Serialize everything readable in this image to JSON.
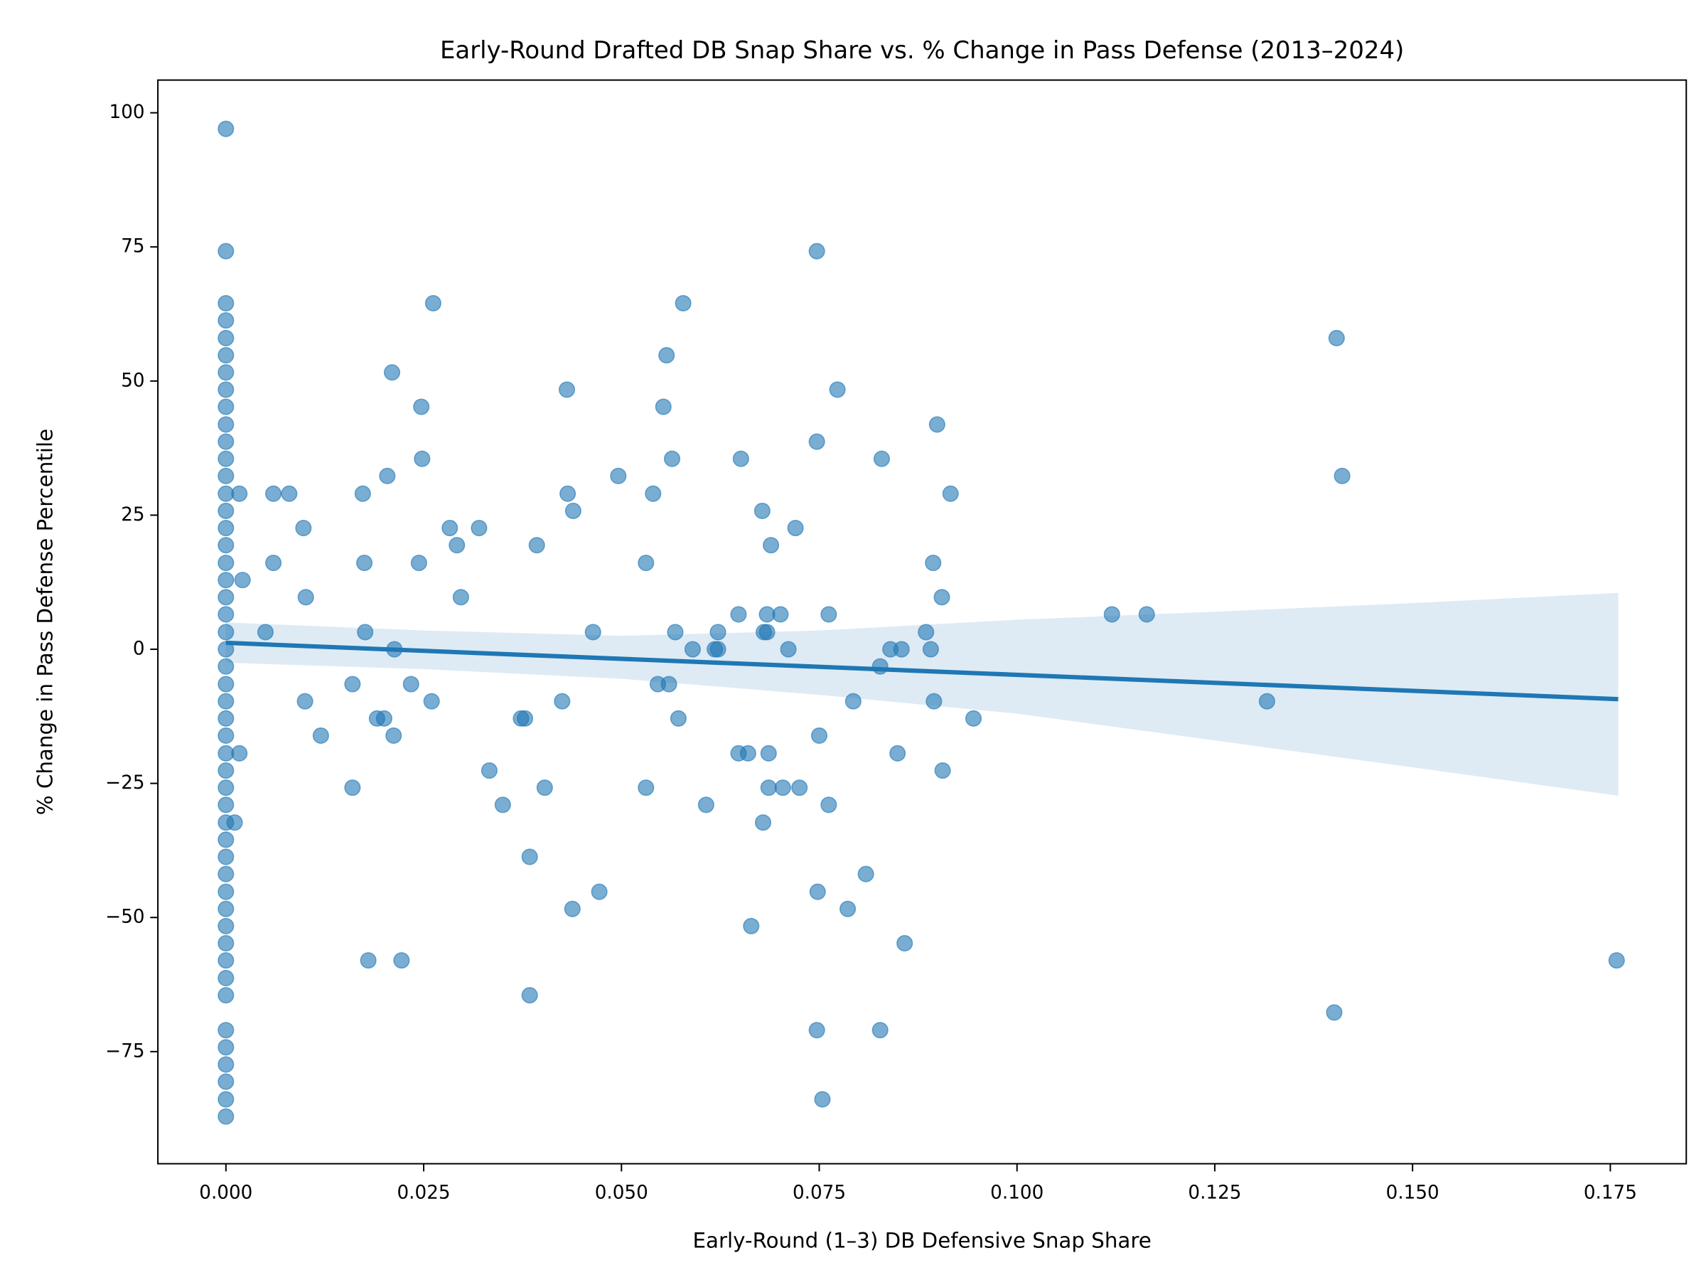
{
  "chart_data": {
    "type": "scatter",
    "title": "Early-Round Drafted DB Snap Share vs. % Change in Pass Defense (2013–2024)",
    "x_label": "Early-Round (1–3) DB Defensive Snap Share",
    "y_label": "% Change in Pass Defense Percentile",
    "xlim": [
      -0.0086,
      0.1846
    ],
    "ylim": [
      -95.9,
      106.1
    ],
    "xticks": [
      {
        "value": 0,
        "label": "0.000"
      },
      {
        "value": 0.025,
        "label": "0.025"
      },
      {
        "value": 0.05,
        "label": "0.050"
      },
      {
        "value": 0.075,
        "label": "0.075"
      },
      {
        "value": 0.1,
        "label": "0.100"
      },
      {
        "value": 0.125,
        "label": "0.125"
      },
      {
        "value": 0.15,
        "label": "0.150"
      },
      {
        "value": 0.175,
        "label": "0.175"
      }
    ],
    "yticks": [
      {
        "value": -75,
        "label": "−75"
      },
      {
        "value": -50,
        "label": "−50"
      },
      {
        "value": -25,
        "label": "−25"
      },
      0,
      25,
      50,
      75,
      100
    ],
    "grid": false,
    "series": [
      {
        "color": "#1f77b4",
        "x": [
          0,
          0,
          0,
          0,
          0,
          0,
          0,
          0,
          0,
          0,
          0,
          0,
          0,
          0,
          0,
          0,
          0,
          0,
          0,
          0,
          0,
          0,
          0,
          0,
          0,
          0,
          0,
          0,
          0,
          0,
          0,
          0,
          0,
          0,
          0,
          0,
          0,
          0,
          0,
          0,
          0,
          0,
          0,
          0,
          0,
          0,
          0,
          0,
          0,
          0.0017,
          0.0021,
          0.0017,
          0.0011,
          0.005,
          0.006,
          0.006,
          0.008,
          0.0098,
          0.0101,
          0.01,
          0.012,
          0.016,
          0.016,
          0.0173,
          0.0175,
          0.0176,
          0.018,
          0.0191,
          0.02,
          0.0204,
          0.021,
          0.0212,
          0.0213,
          0.0222,
          0.0234,
          0.0244,
          0.0247,
          0.0248,
          0.026,
          0.0262,
          0.0283,
          0.0292,
          0.0297,
          0.032,
          0.0333,
          0.035,
          0.0373,
          0.0378,
          0.0384,
          0.0384,
          0.0393,
          0.0403,
          0.0425,
          0.0431,
          0.0432,
          0.0439,
          0.0438,
          0.0464,
          0.0472,
          0.0496,
          0.0531,
          0.0531,
          0.054,
          0.0546,
          0.0553,
          0.0557,
          0.056,
          0.0564,
          0.0568,
          0.0572,
          0.0578,
          0.059,
          0.0607,
          0.0618,
          0.0622,
          0.0622,
          0.0648,
          0.0651,
          0.0648,
          0.066,
          0.0664,
          0.0678,
          0.0679,
          0.068,
          0.0684,
          0.0684,
          0.0686,
          0.0686,
          0.0689,
          0.0701,
          0.0704,
          0.0711,
          0.072,
          0.0725,
          0.0747,
          0.0747,
          0.0747,
          0.0748,
          0.075,
          0.0754,
          0.0762,
          0.0762,
          0.0773,
          0.0786,
          0.0793,
          0.0809,
          0.0827,
          0.0829,
          0.0827,
          0.084,
          0.0849,
          0.0854,
          0.0858,
          0.0885,
          0.0891,
          0.0894,
          0.0895,
          0.0899,
          0.0905,
          0.0906,
          0.0916,
          0.0945,
          0.112,
          0.1164,
          0.1316,
          0.1404,
          0.1411,
          0.1401,
          0.1758
        ],
        "values": [
          97,
          74.2,
          64.5,
          61.3,
          58,
          54.8,
          51.6,
          48.4,
          45.2,
          41.9,
          38.7,
          35.5,
          32.3,
          29,
          25.8,
          22.6,
          19.4,
          16.1,
          12.9,
          9.7,
          6.5,
          3.2,
          0,
          -3.2,
          -6.5,
          -9.7,
          -12.9,
          -16.1,
          -19.4,
          -22.6,
          -25.8,
          -29,
          -32.3,
          -35.5,
          -38.7,
          -41.9,
          -45.2,
          -48.4,
          -51.6,
          -54.8,
          -58,
          -61.3,
          -64.5,
          -71,
          -74.2,
          -77.4,
          -80.6,
          -83.9,
          -87.1,
          29,
          12.9,
          -19.4,
          -32.3,
          3.2,
          29,
          16.1,
          29,
          22.6,
          9.7,
          -9.7,
          -16.1,
          -6.5,
          -25.8,
          29,
          16.1,
          3.2,
          -58,
          -12.9,
          -12.9,
          32.3,
          51.6,
          -16.1,
          0,
          -58,
          -6.5,
          16.1,
          45.2,
          35.5,
          -9.7,
          64.5,
          22.6,
          19.4,
          9.7,
          22.6,
          -22.6,
          -29,
          -12.9,
          -12.9,
          -38.7,
          -64.5,
          19.4,
          -25.8,
          -9.7,
          48.4,
          29,
          25.8,
          -48.4,
          3.2,
          -45.2,
          32.3,
          16.1,
          -25.8,
          29,
          -6.5,
          45.2,
          54.8,
          -6.5,
          35.5,
          3.2,
          -12.9,
          64.5,
          0,
          -29,
          0,
          3.2,
          0,
          6.5,
          35.5,
          -19.4,
          -19.4,
          -51.6,
          25.8,
          -32.3,
          3.2,
          3.2,
          6.5,
          -19.4,
          -25.8,
          19.4,
          6.5,
          -25.8,
          0,
          22.6,
          -25.8,
          74.2,
          38.7,
          -71,
          -45.2,
          -16.1,
          -83.9,
          6.5,
          -29,
          48.4,
          -48.4,
          -9.7,
          -41.9,
          -3.2,
          35.5,
          -71,
          0,
          -19.4,
          0,
          -54.8,
          3.2,
          0,
          16.1,
          -9.7,
          41.9,
          9.7,
          -22.6,
          29,
          -12.9,
          6.5,
          6.5,
          -9.7,
          58,
          32.3,
          -67.7,
          -58
        ]
      }
    ],
    "fit": {
      "color": "#1f77b4",
      "x": [
        0,
        0.176
      ],
      "values": [
        1.2,
        -9.3
      ]
    },
    "band": {
      "color": "#1f77b4",
      "x": [
        0,
        0.025,
        0.05,
        0.075,
        0.1,
        0.125,
        0.15,
        0.176
      ],
      "lower": [
        -2.5,
        -3.7,
        -5.5,
        -8.5,
        -12,
        -17,
        -22,
        -27.3
      ],
      "upper": [
        5,
        3.5,
        2.5,
        3.5,
        5.5,
        7,
        8.6,
        10.5
      ]
    }
  }
}
